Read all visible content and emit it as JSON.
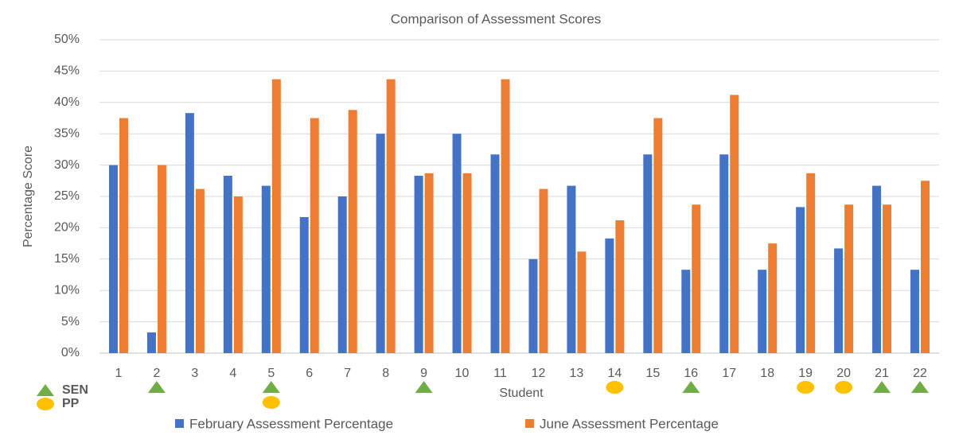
{
  "chart_data": {
    "type": "bar",
    "title": "Comparison of Assessment Scores",
    "x_label": "Student",
    "y_label": "Percentage Score",
    "categories": [
      "1",
      "2",
      "3",
      "4",
      "5",
      "6",
      "7",
      "8",
      "9",
      "10",
      "11",
      "12",
      "13",
      "14",
      "15",
      "16",
      "17",
      "18",
      "19",
      "20",
      "21",
      "22"
    ],
    "series": [
      {
        "name": "February Assessment Percentage",
        "color": "#4472c4",
        "values": [
          30,
          3.3,
          38.3,
          28.3,
          26.7,
          21.7,
          25,
          35,
          28.3,
          35,
          31.7,
          15,
          26.7,
          18.3,
          31.7,
          13.3,
          31.7,
          13.3,
          23.3,
          16.7,
          26.7,
          13.3
        ]
      },
      {
        "name": "June Assessment Percentage",
        "color": "#ed7d31",
        "values": [
          37.5,
          30,
          26.2,
          25,
          43.7,
          37.5,
          38.8,
          43.7,
          28.7,
          28.7,
          43.7,
          26.2,
          16.2,
          21.2,
          37.5,
          23.7,
          41.2,
          17.5,
          28.7,
          23.7,
          23.7,
          27.5
        ]
      }
    ],
    "markers": [
      {
        "name": "SEN",
        "shape": "triangle",
        "color": "#70ad47",
        "categories": [
          "2",
          "5",
          "9",
          "16",
          "21",
          "22"
        ]
      },
      {
        "name": "PP",
        "shape": "circle",
        "color": "#ffc000",
        "categories": [
          "5",
          "14",
          "19",
          "20"
        ]
      }
    ],
    "ylim": [
      0,
      50
    ],
    "yticks": [
      {
        "value": 0,
        "label": "0%"
      },
      {
        "value": 5,
        "label": "5%"
      },
      {
        "value": 10,
        "label": "10%"
      },
      {
        "value": 15,
        "label": "15%"
      },
      {
        "value": 20,
        "label": "20%"
      },
      {
        "value": 25,
        "label": "25%"
      },
      {
        "value": 30,
        "label": "30%"
      },
      {
        "value": 35,
        "label": "35%"
      },
      {
        "value": 40,
        "label": "40%"
      },
      {
        "value": 45,
        "label": "45%"
      },
      {
        "value": 50,
        "label": "50%"
      }
    ],
    "grid": true
  }
}
